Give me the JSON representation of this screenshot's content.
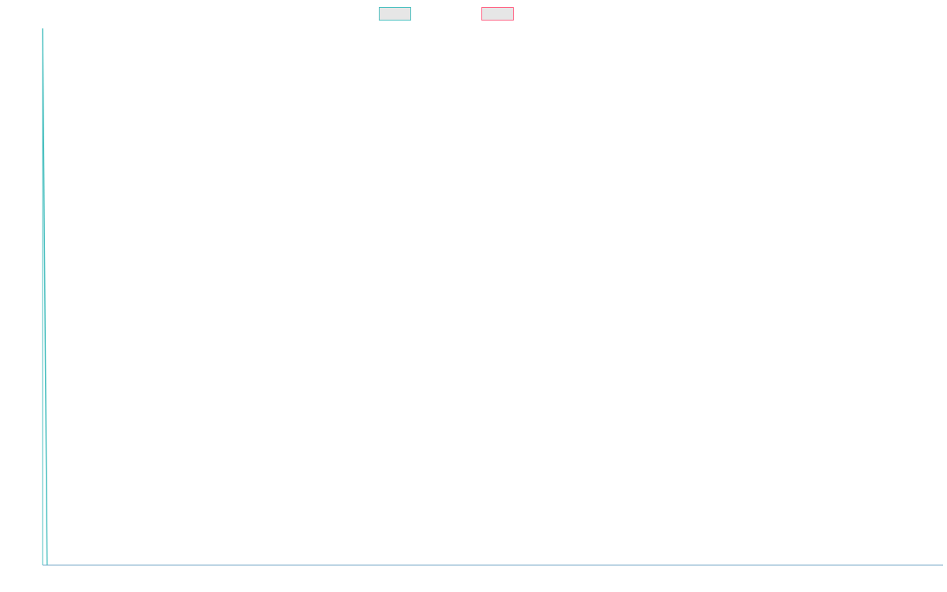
{
  "chart_data": {
    "type": "line",
    "title": "",
    "xlabel": "",
    "ylabel": "",
    "grid": false,
    "legend_position": "top-center",
    "series": [
      {
        "color": "#4bc0c0",
        "points": [
          [
            0,
            1
          ],
          [
            1,
            0
          ]
        ]
      },
      {
        "color": "#ff6384",
        "points": []
      }
    ],
    "xlim": [
      0,
      200
    ],
    "ylim": [
      0,
      1
    ]
  },
  "legend": {
    "items": [
      {
        "label": "",
        "border_color": "#4bc0c0",
        "fill_color": "#e6e6e6"
      },
      {
        "label": "",
        "border_color": "#ff6384",
        "fill_color": "#e6e6e6"
      }
    ]
  }
}
